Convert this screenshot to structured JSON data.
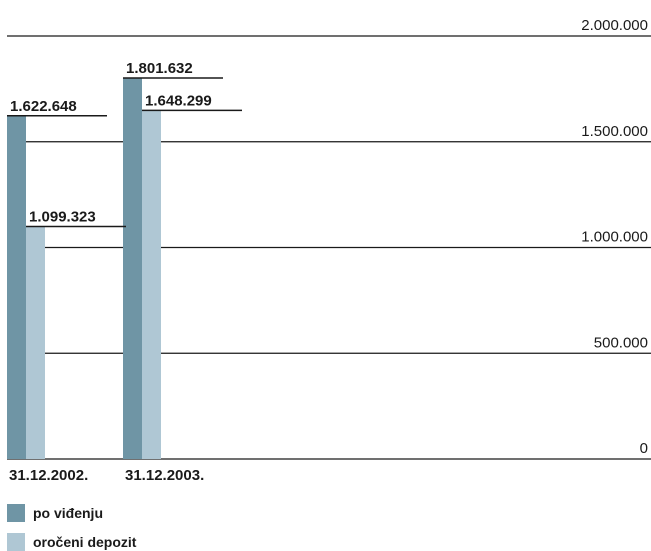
{
  "chart_data": {
    "type": "bar",
    "categories": [
      "31.12.2002.",
      "31.12.2003."
    ],
    "series": [
      {
        "name": "po viđenju",
        "color": "#6f95a5",
        "values": [
          1622648,
          1801632
        ],
        "value_labels": [
          "1.622.648",
          "1.801.632"
        ]
      },
      {
        "name": "oročeni depozit",
        "color": "#afc7d4",
        "values": [
          1099323,
          1648299
        ],
        "value_labels": [
          "1.099.323",
          "1.648.299"
        ]
      }
    ],
    "ylim": [
      0,
      2000000
    ],
    "yticks": [
      0,
      500000,
      1000000,
      1500000,
      2000000
    ],
    "ytick_labels": [
      "0",
      "500.000",
      "1.000.000",
      "1.500.000",
      "2.000.000"
    ],
    "y_axis_labels_position": "right",
    "grid": true,
    "legend_position": "bottom-left",
    "title": "",
    "xlabel": "",
    "ylabel": ""
  }
}
